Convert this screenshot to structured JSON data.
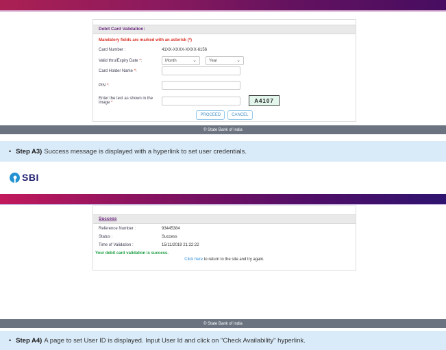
{
  "colors": {
    "gradient_left": "#c2195c",
    "gradient_right": "#2e146f",
    "accent_purple": "#6c2a7f",
    "mandatory_red": "#d93025",
    "success_green": "#1e9e42",
    "link_blue": "#2f8fde",
    "step_bar_bg": "#d9eaf8",
    "footer_bg": "#6b7380",
    "captcha_bg": "#e3f6ec",
    "sbi_logo_blue": "#2492d1"
  },
  "validation_screen": {
    "panel_title": "Debit Card Validation:",
    "mandatory_note": "Mandatory fields are marked with an asterisk (*)",
    "card_number": {
      "label": "Card Number :",
      "value": "41XX-XXXX-XXXX-6156"
    },
    "expiry": {
      "label": "Valid thru/Expiry Date ",
      "asterisk": "*",
      "colon": ":",
      "month_placeholder": "Month",
      "year_placeholder": "Year",
      "chevron": "⌄"
    },
    "card_holder": {
      "label": "Card Holder Name ",
      "asterisk": "*",
      "colon": ":",
      "value": ""
    },
    "pin": {
      "label": "PIN ",
      "asterisk": "*",
      "colon": ":",
      "value": ""
    },
    "captcha": {
      "label": "Enter the text as shown in the image ",
      "asterisk": "*",
      "value": "",
      "image_text": "A4107"
    },
    "buttons": {
      "proceed": "PROCEED",
      "cancel": "CANCEL"
    },
    "footer": "© State Bank of India"
  },
  "step_a3": {
    "bullet": "•",
    "label": "Step A3)",
    "text": "Success message is displayed with a hyperlink to set user credentials."
  },
  "success_screen": {
    "logo_text": "SBI",
    "panel_title": "Success",
    "rows": [
      {
        "label": "Reference Number :",
        "value": "93445384"
      },
      {
        "label": "Status :",
        "value": "Success"
      },
      {
        "label": "Time of Validation :",
        "value": "15/11/2019 21:22:22"
      }
    ],
    "message": "Your debit card validation is success.",
    "link": {
      "text": "Click here",
      "suffix": " to return to the site and try again."
    },
    "footer": "© State Bank of India"
  },
  "step_a4": {
    "bullet": "•",
    "label": "Step A4)",
    "text": "A page to set User ID is displayed. Input User Id and click on \"Check Availability\" hyperlink."
  }
}
